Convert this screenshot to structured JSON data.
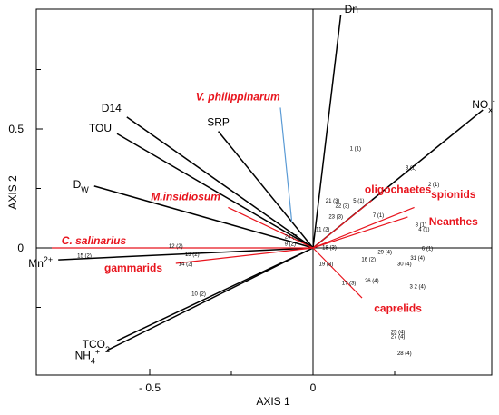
{
  "chart_data": {
    "type": "biplot",
    "xlabel": "AXIS 1",
    "ylabel": "AXIS 2",
    "xlim": [
      -0.82,
      0.55
    ],
    "ylim": [
      -0.43,
      0.78
    ],
    "x_ticks": [
      {
        "value": -0.5,
        "label": "- 0.5"
      },
      {
        "value": 0,
        "label": "0"
      }
    ],
    "y_ticks": [
      {
        "value": 0.5,
        "label": "0.5"
      },
      {
        "value": 0,
        "label": "0"
      }
    ],
    "x_minor_ticks": [
      -0.25,
      0.25
    ],
    "y_minor_ticks": [
      0.25,
      -0.25
    ],
    "grid": false,
    "environment_vectors": [
      {
        "name": "Dn",
        "sub": "",
        "sup": "",
        "x": 0.085,
        "y": 0.98
      },
      {
        "name": "NO",
        "sub": "x",
        "sup": "-",
        "x": 0.52,
        "y": 0.58
      },
      {
        "name": "D14",
        "sub": "",
        "sup": "",
        "x": -0.57,
        "y": 0.55
      },
      {
        "name": "TOU",
        "sub": "",
        "sup": "",
        "x": -0.6,
        "y": 0.48
      },
      {
        "name": "SRP",
        "sub": "",
        "sup": "",
        "x": -0.29,
        "y": 0.49
      },
      {
        "name": "D",
        "sub": "W",
        "sup": "",
        "x": -0.67,
        "y": 0.26
      },
      {
        "name": "Mn",
        "sub": "",
        "sup": "2+",
        "x": -0.78,
        "y": -0.05
      },
      {
        "name": "TCO",
        "sub": "2",
        "sup": "",
        "x": -0.6,
        "y": -0.39
      },
      {
        "name": "NH",
        "sub": "4",
        "sup": "+",
        "x": -0.63,
        "y": -0.43
      }
    ],
    "species_vectors": [
      {
        "name": "V. philippinarum",
        "italic": true,
        "x": -0.065,
        "y": 0.11
      },
      {
        "name": "M.insidiosum",
        "italic": true,
        "x": -0.26,
        "y": 0.17
      },
      {
        "name": "C. salinarius",
        "italic": true,
        "x": -0.8,
        "y": 0.0
      },
      {
        "name": "gammarids",
        "italic": false,
        "x": -0.42,
        "y": -0.065
      },
      {
        "name": "oligochaetes",
        "italic": false,
        "x": 0.18,
        "y": 0.2
      },
      {
        "name": "spionids",
        "italic": false,
        "x": 0.31,
        "y": 0.17
      },
      {
        "name": "Neanthes",
        "italic": false,
        "x": 0.29,
        "y": 0.13
      },
      {
        "name": "caprelids",
        "italic": false,
        "x": 0.15,
        "y": -0.21
      }
    ],
    "sites": [
      {
        "label": "1 (1)",
        "x": 0.13,
        "y": 0.41
      },
      {
        "label": "2 (1)",
        "x": 0.37,
        "y": 0.26
      },
      {
        "label": "3 (1)",
        "x": 0.3,
        "y": 0.33
      },
      {
        "label": "4 (1)",
        "x": 0.34,
        "y": 0.07
      },
      {
        "label": "5 (1)",
        "x": 0.14,
        "y": 0.19
      },
      {
        "label": "6 (1)",
        "x": 0.35,
        "y": -0.01
      },
      {
        "label": "7 (1)",
        "x": 0.2,
        "y": 0.13
      },
      {
        "label": "8 (1)",
        "x": 0.33,
        "y": 0.09
      },
      {
        "label": "9 (2)",
        "x": -0.07,
        "y": 0.01
      },
      {
        "label": "10 (2)",
        "x": -0.35,
        "y": -0.2
      },
      {
        "label": "11 (2)",
        "x": 0.03,
        "y": 0.07
      },
      {
        "label": "12 (2)",
        "x": -0.42,
        "y": 0.0
      },
      {
        "label": "13 (2)",
        "x": -0.37,
        "y": -0.035
      },
      {
        "label": "14 (2)",
        "x": -0.39,
        "y": -0.075
      },
      {
        "label": "15 (2)",
        "x": -0.7,
        "y": -0.04
      },
      {
        "label": "16 (2)",
        "x": 0.17,
        "y": -0.055
      },
      {
        "label": "17 (3)",
        "x": 0.11,
        "y": -0.155
      },
      {
        "label": "18 (3)",
        "x": 0.05,
        "y": -0.005
      },
      {
        "label": "19 (3)",
        "x": 0.04,
        "y": -0.075
      },
      {
        "label": "21 (3)",
        "x": 0.06,
        "y": 0.19
      },
      {
        "label": "22 (3)",
        "x": 0.09,
        "y": 0.17
      },
      {
        "label": "23 (3)",
        "x": 0.07,
        "y": 0.125
      },
      {
        "label": "24 (3)",
        "x": -0.065,
        "y": 0.04
      },
      {
        "label": "25 (4)",
        "x": 0.26,
        "y": -0.36
      },
      {
        "label": "26 (4)",
        "x": 0.18,
        "y": -0.145
      },
      {
        "label": "27 (4)",
        "x": 0.26,
        "y": -0.38
      },
      {
        "label": "28 (4)",
        "x": 0.28,
        "y": -0.45
      },
      {
        "label": "29 (4)",
        "x": 0.22,
        "y": -0.025
      },
      {
        "label": "30 (4)",
        "x": 0.28,
        "y": -0.075
      },
      {
        "label": "31 (4)",
        "x": 0.32,
        "y": -0.05
      },
      {
        "label": "3 2 (4)",
        "x": 0.32,
        "y": -0.17
      }
    ],
    "colors": {
      "environment": "#000000",
      "species": "#e8141d",
      "species_highlight": "#5b9bd5"
    }
  }
}
